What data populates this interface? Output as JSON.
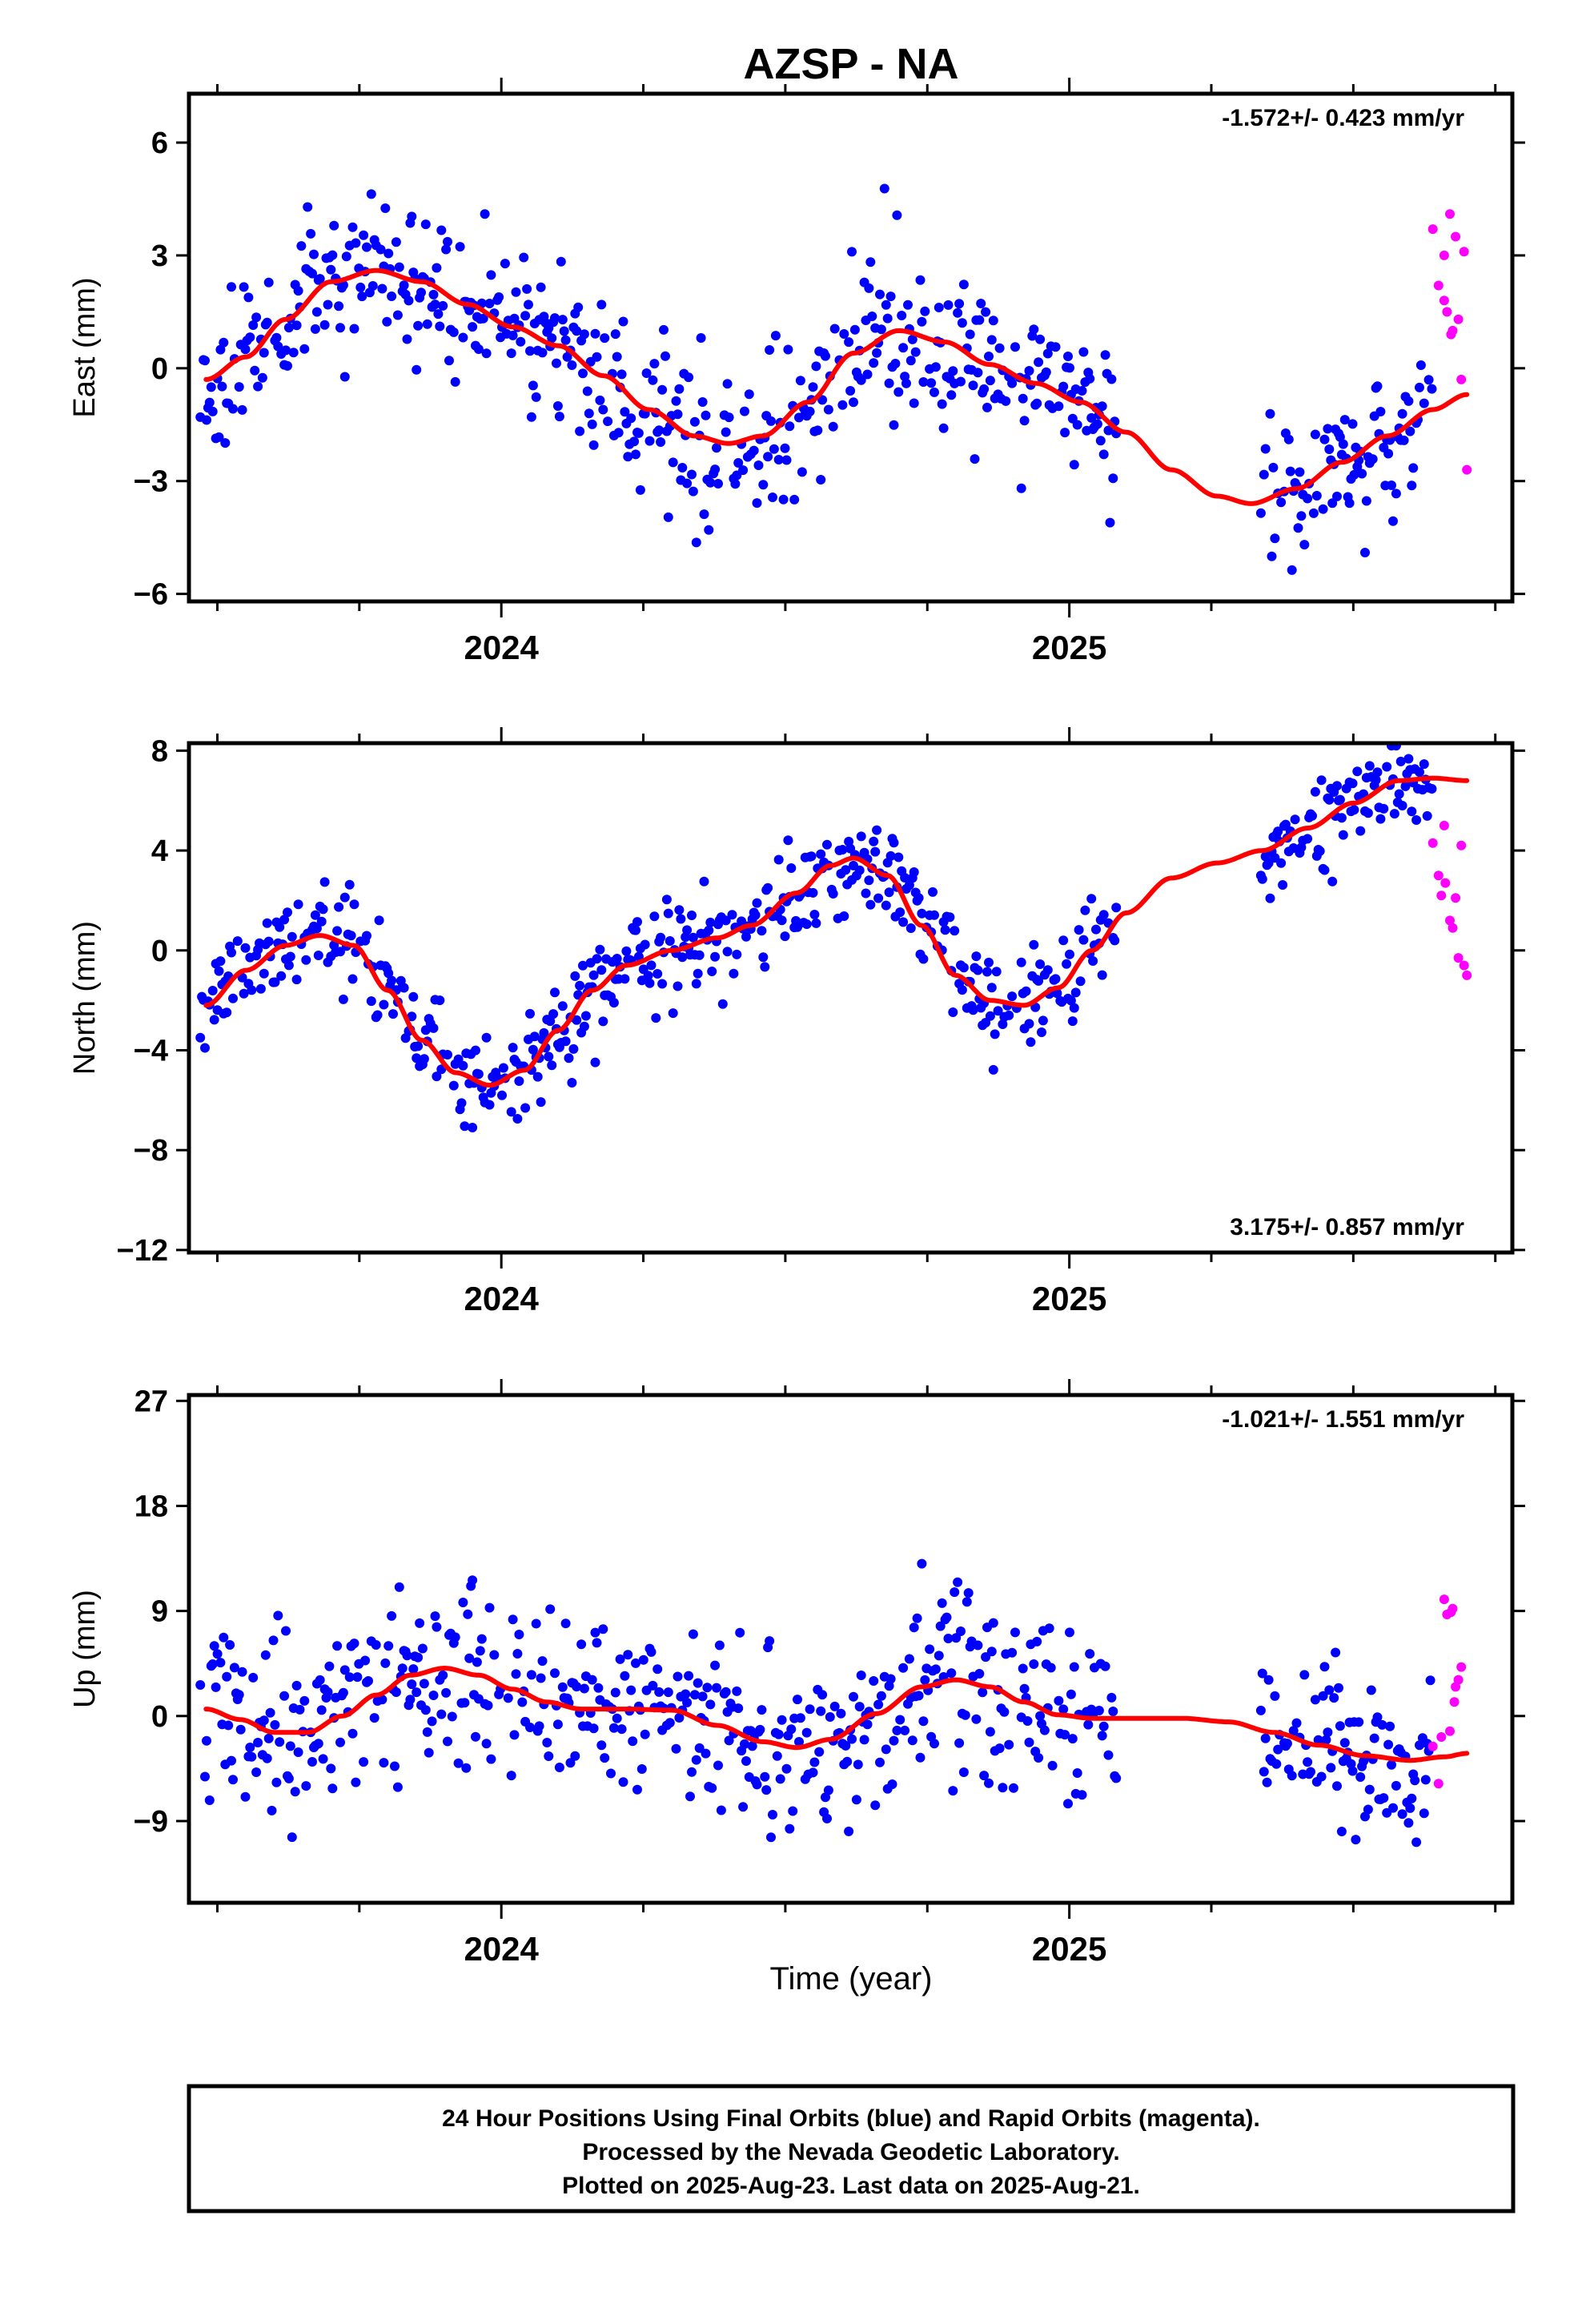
{
  "figure": {
    "title": "AZSP - NA",
    "xlabel": "Time (year)",
    "footer": [
      "24 Hour Positions Using Final Orbits (blue) and Rapid Orbits (magenta).",
      "Processed by the Nevada Geodetic Laboratory.",
      "Plotted on 2025-Aug-23. Last data on 2025-Aug-21."
    ]
  },
  "colors": {
    "final_orbits": "#0000ff",
    "rapid_orbits": "#ff00ff",
    "model_fit": "#ff0000",
    "frame": "#000000"
  },
  "chart_data": [
    {
      "type": "scatter",
      "component": "east",
      "ylabel": "East (mm)",
      "ylim": [
        -6.2,
        7.3
      ],
      "yticks": [
        6,
        3,
        0,
        -3,
        -6
      ],
      "xlim": [
        2023.45,
        2025.78
      ],
      "xticks_labeled": [
        2024,
        2025
      ],
      "rate_label": "-1.572+/- 0.423 mm/yr",
      "rate_position": "top-right",
      "series": [
        {
          "role": "final",
          "color": "#0000ff",
          "gen": {
            "seed": 11,
            "scatter": 1.05
          }
        },
        {
          "role": "rapid",
          "color": "#ff00ff",
          "values": [
            [
              2025.64,
              3.7
            ],
            [
              2025.65,
              2.2
            ],
            [
              2025.66,
              3.0
            ],
            [
              2025.665,
              1.5
            ],
            [
              2025.67,
              4.1
            ],
            [
              2025.675,
              1.0
            ],
            [
              2025.68,
              3.5
            ],
            [
              2025.685,
              1.3
            ],
            [
              2025.69,
              -0.3
            ],
            [
              2025.695,
              3.1
            ],
            [
              2025.7,
              -2.7
            ],
            [
              2025.66,
              1.8
            ],
            [
              2025.672,
              0.9
            ]
          ]
        },
        {
          "role": "fit",
          "color": "#ff0000",
          "knots": [
            [
              2023.48,
              -0.3
            ],
            [
              2023.55,
              0.3
            ],
            [
              2023.62,
              1.3
            ],
            [
              2023.7,
              2.3
            ],
            [
              2023.78,
              2.6
            ],
            [
              2023.86,
              2.3
            ],
            [
              2023.94,
              1.7
            ],
            [
              2024.02,
              1.1
            ],
            [
              2024.1,
              0.6
            ],
            [
              2024.18,
              -0.2
            ],
            [
              2024.26,
              -1.1
            ],
            [
              2024.34,
              -1.8
            ],
            [
              2024.4,
              -2.0
            ],
            [
              2024.46,
              -1.8
            ],
            [
              2024.54,
              -0.9
            ],
            [
              2024.62,
              0.4
            ],
            [
              2024.7,
              1.0
            ],
            [
              2024.78,
              0.7
            ],
            [
              2024.86,
              0.1
            ],
            [
              2024.94,
              -0.4
            ],
            [
              2025.02,
              -0.9
            ],
            [
              2025.1,
              -1.7
            ],
            [
              2025.18,
              -2.7
            ],
            [
              2025.26,
              -3.4
            ],
            [
              2025.32,
              -3.6
            ],
            [
              2025.4,
              -3.2
            ],
            [
              2025.48,
              -2.5
            ],
            [
              2025.56,
              -1.8
            ],
            [
              2025.64,
              -1.1
            ],
            [
              2025.7,
              -0.7
            ]
          ]
        }
      ]
    },
    {
      "type": "scatter",
      "component": "north",
      "ylabel": "North (mm)",
      "ylim": [
        -12.1,
        8.3
      ],
      "yticks": [
        8,
        4,
        0,
        -4,
        -8,
        -12
      ],
      "xlim": [
        2023.45,
        2025.78
      ],
      "xticks_labeled": [
        2024,
        2025
      ],
      "rate_label": "3.175+/- 0.857 mm/yr",
      "rate_position": "bottom-right",
      "series": [
        {
          "role": "final",
          "color": "#0000ff",
          "gen": {
            "seed": 23,
            "scatter": 1.0
          }
        },
        {
          "role": "rapid",
          "color": "#ff00ff",
          "values": [
            [
              2025.64,
              4.3
            ],
            [
              2025.65,
              3.0
            ],
            [
              2025.66,
              5.0
            ],
            [
              2025.662,
              2.7
            ],
            [
              2025.67,
              1.2
            ],
            [
              2025.675,
              0.9
            ],
            [
              2025.68,
              2.1
            ],
            [
              2025.685,
              -0.3
            ],
            [
              2025.69,
              4.2
            ],
            [
              2025.695,
              -0.6
            ],
            [
              2025.7,
              -1.0
            ],
            [
              2025.655,
              2.2
            ]
          ]
        },
        {
          "role": "fit",
          "color": "#ff0000",
          "knots": [
            [
              2023.48,
              -2.2
            ],
            [
              2023.55,
              -0.8
            ],
            [
              2023.62,
              0.2
            ],
            [
              2023.68,
              0.6
            ],
            [
              2023.74,
              0.2
            ],
            [
              2023.8,
              -1.6
            ],
            [
              2023.86,
              -3.6
            ],
            [
              2023.92,
              -4.9
            ],
            [
              2023.98,
              -5.4
            ],
            [
              2024.04,
              -4.8
            ],
            [
              2024.1,
              -3.2
            ],
            [
              2024.16,
              -1.6
            ],
            [
              2024.22,
              -0.6
            ],
            [
              2024.3,
              0.0
            ],
            [
              2024.38,
              0.5
            ],
            [
              2024.44,
              1.0
            ],
            [
              2024.52,
              2.3
            ],
            [
              2024.58,
              3.4
            ],
            [
              2024.62,
              3.7
            ],
            [
              2024.68,
              3.0
            ],
            [
              2024.74,
              1.0
            ],
            [
              2024.8,
              -1.0
            ],
            [
              2024.86,
              -2.0
            ],
            [
              2024.92,
              -2.2
            ],
            [
              2024.98,
              -1.5
            ],
            [
              2025.04,
              0.0
            ],
            [
              2025.1,
              1.5
            ],
            [
              2025.18,
              2.9
            ],
            [
              2025.26,
              3.5
            ],
            [
              2025.34,
              4.0
            ],
            [
              2025.42,
              4.9
            ],
            [
              2025.5,
              5.9
            ],
            [
              2025.58,
              6.8
            ],
            [
              2025.64,
              6.9
            ],
            [
              2025.7,
              6.8
            ]
          ]
        }
      ]
    },
    {
      "type": "scatter",
      "component": "up",
      "ylabel": "Up (mm)",
      "ylim": [
        -16.0,
        27.5
      ],
      "yticks": [
        27,
        18,
        9,
        0,
        -9
      ],
      "xlim": [
        2023.45,
        2025.78
      ],
      "xticks_labeled": [
        2024,
        2025
      ],
      "rate_label": "-1.021+/- 1.551 mm/yr",
      "rate_position": "top-right",
      "series": [
        {
          "role": "final",
          "color": "#0000ff",
          "gen": {
            "seed": 37,
            "scatter": 3.8
          }
        },
        {
          "role": "rapid",
          "color": "#ff00ff",
          "values": [
            [
              2025.64,
              -2.6
            ],
            [
              2025.65,
              -5.8
            ],
            [
              2025.66,
              10.0
            ],
            [
              2025.665,
              8.7
            ],
            [
              2025.67,
              -1.3
            ],
            [
              2025.675,
              9.2
            ],
            [
              2025.68,
              2.5
            ],
            [
              2025.685,
              3.1
            ],
            [
              2025.69,
              4.2
            ],
            [
              2025.655,
              -1.8
            ],
            [
              2025.672,
              8.9
            ],
            [
              2025.678,
              1.2
            ]
          ]
        },
        {
          "role": "fit",
          "color": "#ff0000",
          "knots": [
            [
              2023.48,
              0.6
            ],
            [
              2023.54,
              -0.3
            ],
            [
              2023.6,
              -1.4
            ],
            [
              2023.66,
              -1.4
            ],
            [
              2023.72,
              0.0
            ],
            [
              2023.78,
              1.8
            ],
            [
              2023.84,
              3.5
            ],
            [
              2023.9,
              4.1
            ],
            [
              2023.96,
              3.5
            ],
            [
              2024.02,
              2.3
            ],
            [
              2024.08,
              1.2
            ],
            [
              2024.14,
              0.6
            ],
            [
              2024.22,
              0.6
            ],
            [
              2024.3,
              0.5
            ],
            [
              2024.38,
              -0.8
            ],
            [
              2024.46,
              -2.2
            ],
            [
              2024.52,
              -2.7
            ],
            [
              2024.58,
              -2.0
            ],
            [
              2024.66,
              0.2
            ],
            [
              2024.74,
              2.5
            ],
            [
              2024.8,
              3.1
            ],
            [
              2024.86,
              2.5
            ],
            [
              2024.92,
              1.2
            ],
            [
              2024.98,
              0.1
            ],
            [
              2025.04,
              -0.2
            ],
            [
              2025.12,
              -0.2
            ],
            [
              2025.2,
              -0.2
            ],
            [
              2025.28,
              -0.5
            ],
            [
              2025.36,
              -1.4
            ],
            [
              2025.44,
              -2.5
            ],
            [
              2025.52,
              -3.4
            ],
            [
              2025.6,
              -3.8
            ],
            [
              2025.66,
              -3.5
            ],
            [
              2025.7,
              -3.2
            ]
          ]
        }
      ]
    }
  ]
}
